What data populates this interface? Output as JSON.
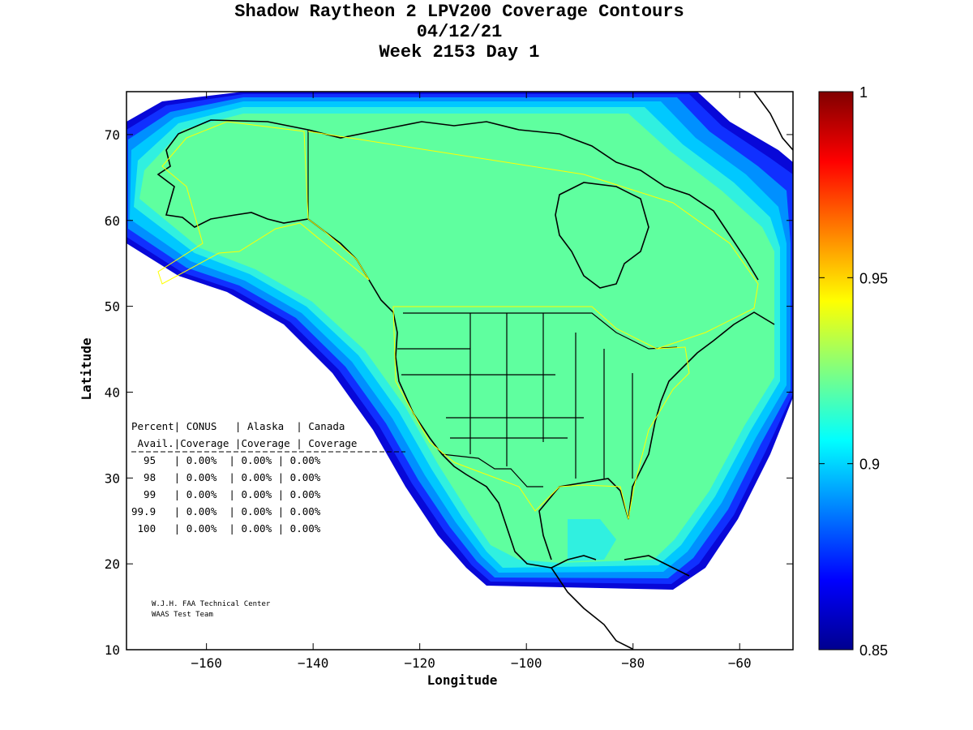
{
  "chart_data": {
    "type": "heatmap",
    "title_lines": [
      "Shadow Raytheon 2 LPV200 Coverage Contours",
      "04/12/21",
      "Week 2153 Day 1"
    ],
    "xlabel": "Longitude",
    "ylabel": "Latitude",
    "xlim": [
      -175,
      -50
    ],
    "ylim": [
      10,
      75
    ],
    "xticks": [
      -160,
      -140,
      -120,
      -100,
      -80,
      -60
    ],
    "yticks": [
      10,
      20,
      30,
      40,
      50,
      60,
      70
    ],
    "colorbar": {
      "min": 0.85,
      "max": 1,
      "tick_values": [
        0.85,
        0.9,
        0.95,
        1
      ],
      "tick_labels": [
        "0.85",
        "0.9",
        "0.95",
        "1"
      ],
      "colors": [
        "#00008f",
        "#0000ff",
        "#0080ff",
        "#00ffff",
        "#80ff80",
        "#ffff00",
        "#ff8000",
        "#ff0000",
        "#800000"
      ]
    },
    "fill_colors": {
      "coverage_core": "#5fff9f",
      "ring_1": "#30f0e0",
      "ring_2": "#00c8ff",
      "ring_3": "#0090ff",
      "ring_4": "#1030ff",
      "ring_5": "#0808d8"
    }
  },
  "table": {
    "header1": "Percent| CONUS   | Alaska  | Canada",
    "header2": " Avail.|Coverage |Coverage | Coverage",
    "divider": "-------------------------------------------",
    "rows": [
      "  95   | 0.00%  | 0.00% | 0.00%",
      "  98   | 0.00%  | 0.00% | 0.00%",
      "  99   | 0.00%  | 0.00% | 0.00%",
      "99.9   | 0.00%  | 0.00% | 0.00%",
      " 100   | 0.00%  | 0.00% | 0.00%"
    ]
  },
  "credits": [
    "W.J.H. FAA Technical Center",
    "WAAS Test Team"
  ]
}
